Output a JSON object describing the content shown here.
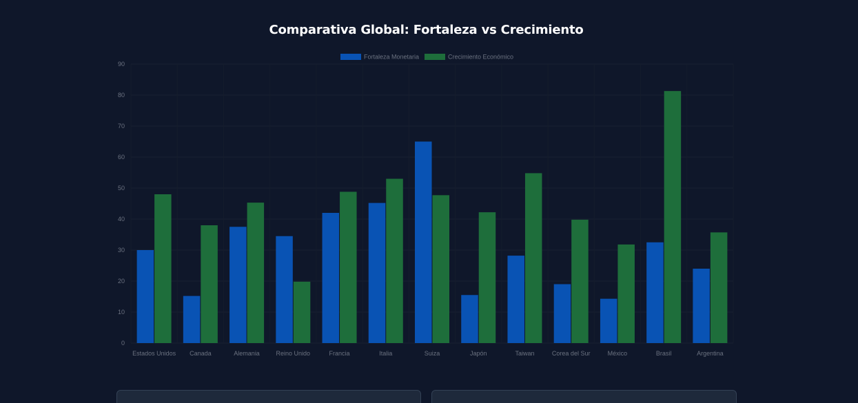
{
  "chart_data": {
    "type": "bar",
    "title": "Comparativa Global: Fortaleza vs Crecimiento",
    "categories": [
      "Estados Unidos",
      "Canada",
      "Alemania",
      "Reino Unido",
      "Francia",
      "Italia",
      "Suiza",
      "Japón",
      "Taiwan",
      "Corea del Sur",
      "México",
      "Brasil",
      "Argentina"
    ],
    "series": [
      {
        "name": "Fortaleza Monetaria",
        "color": "#0953b4",
        "values": [
          30,
          15.2,
          37.5,
          34.5,
          42,
          45.2,
          65,
          15.5,
          28.2,
          19,
          14.3,
          32.5,
          24
        ]
      },
      {
        "name": "Crecimiento Económico",
        "color": "#1e6e3b",
        "values": [
          48,
          38,
          45.3,
          19.8,
          48.8,
          53,
          47.7,
          42.2,
          54.8,
          39.8,
          31.8,
          81.3,
          35.7
        ]
      }
    ],
    "ylim": [
      0,
      90
    ],
    "yticks": [
      "0",
      "10",
      "20",
      "30",
      "40",
      "50",
      "60",
      "70",
      "80",
      "90"
    ],
    "legend": "top",
    "grid": true
  }
}
